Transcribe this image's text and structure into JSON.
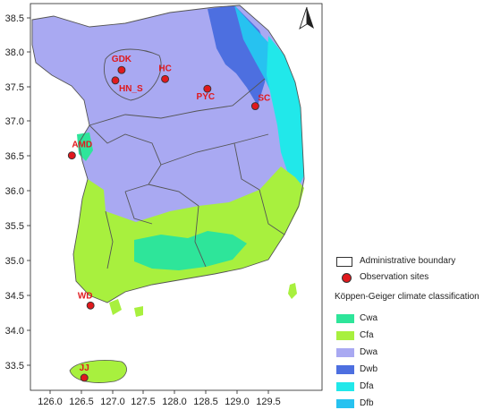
{
  "map": {
    "x_ticks": [
      "126.0",
      "126.5",
      "127.0",
      "127.5",
      "128.0",
      "128.5",
      "129.0",
      "129.5"
    ],
    "y_ticks": [
      "38.5",
      "38.0",
      "37.5",
      "37.0",
      "36.5",
      "36.0",
      "35.5",
      "35.0",
      "34.5",
      "34.0",
      "33.5"
    ],
    "north_arrow": "north-arrow-icon"
  },
  "sites": [
    {
      "label": "GDK",
      "lon": 127.15,
      "lat": 37.75
    },
    {
      "label": "HC",
      "lon": 127.85,
      "lat": 37.62
    },
    {
      "label": "HN_S",
      "lon": 127.05,
      "lat": 37.6
    },
    {
      "label": "PYC",
      "lon": 128.53,
      "lat": 37.48
    },
    {
      "label": "SC",
      "lon": 129.3,
      "lat": 37.23
    },
    {
      "label": "AMD",
      "lon": 126.35,
      "lat": 36.52
    },
    {
      "label": "WD",
      "lon": 126.65,
      "lat": 34.36
    },
    {
      "label": "JJ",
      "lon": 126.55,
      "lat": 33.32
    }
  ],
  "legend": {
    "admin_boundary": "Administrative boundary",
    "observation_sites": "Observation sites",
    "classification_title": "Köppen-Geiger  climate classification",
    "classes": [
      {
        "label": "Cwa",
        "color": "#2ee59a"
      },
      {
        "label": "Cfa",
        "color": "#a8f03e"
      },
      {
        "label": "Dwa",
        "color": "#a9a9f2"
      },
      {
        "label": "Dwb",
        "color": "#4d6fe0"
      },
      {
        "label": "Dfa",
        "color": "#21e8ea"
      },
      {
        "label": "Dfb",
        "color": "#27c2f0"
      }
    ]
  }
}
